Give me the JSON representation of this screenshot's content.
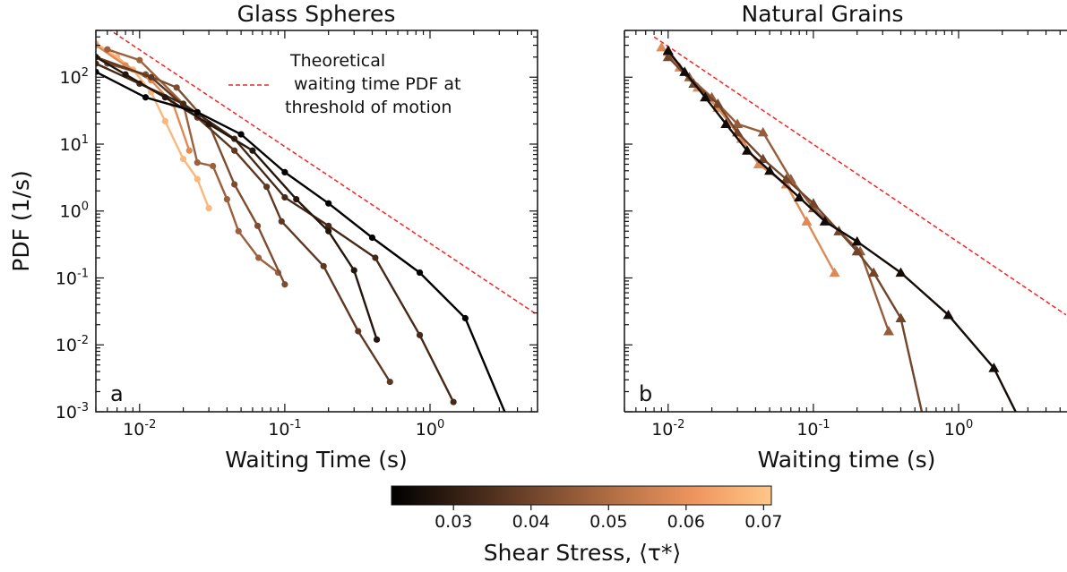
{
  "chart_data": [
    {
      "type": "line",
      "panel": "a",
      "title": "Glass Spheres",
      "xlabel": "Waiting Time (s)",
      "ylabel": "PDF (1/s)",
      "xscale": "log",
      "yscale": "log",
      "xlim": [
        0.005,
        5.5
      ],
      "ylim": [
        0.001,
        500
      ],
      "xticks": [
        {
          "value": 0.01,
          "label": "10^-2"
        },
        {
          "value": 0.1,
          "label": "10^-1"
        },
        {
          "value": 1,
          "label": "10^0"
        }
      ],
      "yticks": [
        {
          "value": 0.001,
          "label": "10^-3"
        },
        {
          "value": 0.01,
          "label": "10^-2"
        },
        {
          "value": 0.1,
          "label": "10^-1"
        },
        {
          "value": 1,
          "label": "10^0"
        },
        {
          "value": 10,
          "label": "10^1"
        },
        {
          "value": 100,
          "label": "10^2"
        }
      ],
      "marker": "circle",
      "legend": {
        "entries": [
          "Theoretical\n waiting time PDF at\nthreshold of motion"
        ],
        "position": "top-right"
      },
      "reference_line": {
        "style": "dashed",
        "color": "#ff2020",
        "x": [
          0.005,
          5.5
        ],
        "y": [
          700,
          0.028
        ]
      },
      "series": [
        {
          "tau": 0.022,
          "x": [
            0.005,
            0.011,
            0.025,
            0.05,
            0.1,
            0.2,
            0.4,
            0.85,
            1.75,
            3.5
          ],
          "y": [
            120,
            50,
            30,
            14,
            3.8,
            1.3,
            0.4,
            0.12,
            0.025,
            0.0007
          ]
        },
        {
          "tau": 0.028,
          "x": [
            0.005,
            0.008,
            0.015,
            0.03,
            0.06,
            0.12,
            0.2,
            0.3,
            0.43
          ],
          "y": [
            200,
            110,
            50,
            20,
            8,
            1.5,
            0.5,
            0.13,
            0.012
          ]
        },
        {
          "tau": 0.033,
          "x": [
            0.005,
            0.01,
            0.02,
            0.045,
            0.1,
            0.2,
            0.42,
            0.85,
            1.45
          ],
          "y": [
            160,
            80,
            40,
            12,
            1.6,
            0.6,
            0.2,
            0.014,
            0.0014
          ]
        },
        {
          "tau": 0.037,
          "x": [
            0.005,
            0.012,
            0.025,
            0.045,
            0.075,
            0.095,
            0.185,
            0.32,
            0.53
          ],
          "y": [
            200,
            100,
            25,
            8,
            2.3,
            0.7,
            0.15,
            0.016,
            0.0028
          ]
        },
        {
          "tau": 0.042,
          "x": [
            0.006,
            0.011,
            0.018,
            0.03,
            0.045,
            0.065,
            0.1
          ],
          "y": [
            160,
            110,
            70,
            20,
            2.5,
            0.6,
            0.08
          ]
        },
        {
          "tau": 0.047,
          "x": [
            0.006,
            0.01,
            0.02,
            0.025,
            0.032,
            0.04,
            0.048,
            0.066,
            0.09
          ],
          "y": [
            260,
            180,
            40,
            5.3,
            4.7,
            1.5,
            0.5,
            0.2,
            0.12
          ]
        },
        {
          "tau": 0.058,
          "x": [
            0.005,
            0.008,
            0.012,
            0.017,
            0.022
          ],
          "y": [
            300,
            150,
            90,
            40,
            8
          ]
        },
        {
          "tau": 0.068,
          "x": [
            0.005,
            0.007,
            0.009,
            0.012,
            0.015,
            0.02,
            0.025,
            0.03
          ],
          "y": [
            320,
            200,
            130,
            60,
            22,
            6,
            3,
            1.1
          ]
        }
      ]
    },
    {
      "type": "line",
      "panel": "b",
      "title": "Natural Grains",
      "xlabel": "Waiting time (s)",
      "ylabel": "",
      "xscale": "log",
      "yscale": "log",
      "xlim": [
        0.005,
        5.5
      ],
      "ylim": [
        0.001,
        500
      ],
      "xticks": [
        {
          "value": 0.01,
          "label": "10^-2"
        },
        {
          "value": 0.1,
          "label": "10^-1"
        },
        {
          "value": 1,
          "label": "10^0"
        }
      ],
      "marker": "triangle",
      "reference_line": {
        "style": "dashed",
        "color": "#ff2020",
        "x": [
          0.008,
          5.5
        ],
        "y": [
          400,
          0.028
        ]
      },
      "series": [
        {
          "tau": 0.025,
          "x": [
            0.01,
            0.013,
            0.018,
            0.025,
            0.035,
            0.05,
            0.08,
            0.12,
            0.2,
            0.4,
            0.85,
            1.75,
            2.6
          ],
          "y": [
            250,
            120,
            50,
            20,
            8,
            4,
            1.6,
            0.7,
            0.35,
            0.12,
            0.028,
            0.0045,
            0.0008
          ]
        },
        {
          "tau": 0.04,
          "x": [
            0.01,
            0.015,
            0.022,
            0.03,
            0.045,
            0.065,
            0.1,
            0.15,
            0.2,
            0.26,
            0.4,
            0.6
          ],
          "y": [
            200,
            80,
            40,
            15,
            6,
            3,
            1.3,
            0.5,
            0.25,
            0.12,
            0.025,
            0.0005
          ]
        },
        {
          "tau": 0.046,
          "x": [
            0.01,
            0.014,
            0.02,
            0.03,
            0.045,
            0.07,
            0.1,
            0.15,
            0.21,
            0.33
          ],
          "y": [
            240,
            100,
            50,
            20,
            15,
            3,
            1.1,
            0.5,
            0.25,
            0.016
          ]
        },
        {
          "tau": 0.058,
          "x": [
            0.009,
            0.012,
            0.016,
            0.022,
            0.032,
            0.042,
            0.065,
            0.09,
            0.14
          ],
          "y": [
            280,
            140,
            70,
            35,
            12,
            5,
            2.5,
            0.7,
            0.12
          ]
        }
      ]
    }
  ],
  "colorbar": {
    "label": "Shear Stress, ⟨τ*⟩",
    "range": [
      0.022,
      0.071
    ],
    "ticks": [
      "0.03",
      "0.04",
      "0.05",
      "0.06",
      "0.07"
    ],
    "tick_values": [
      0.03,
      0.04,
      0.05,
      0.06,
      0.07
    ],
    "colormap": [
      "#000000",
      "#3c2416",
      "#7a4b2f",
      "#b77246",
      "#ef955f",
      "#ffc788"
    ]
  }
}
